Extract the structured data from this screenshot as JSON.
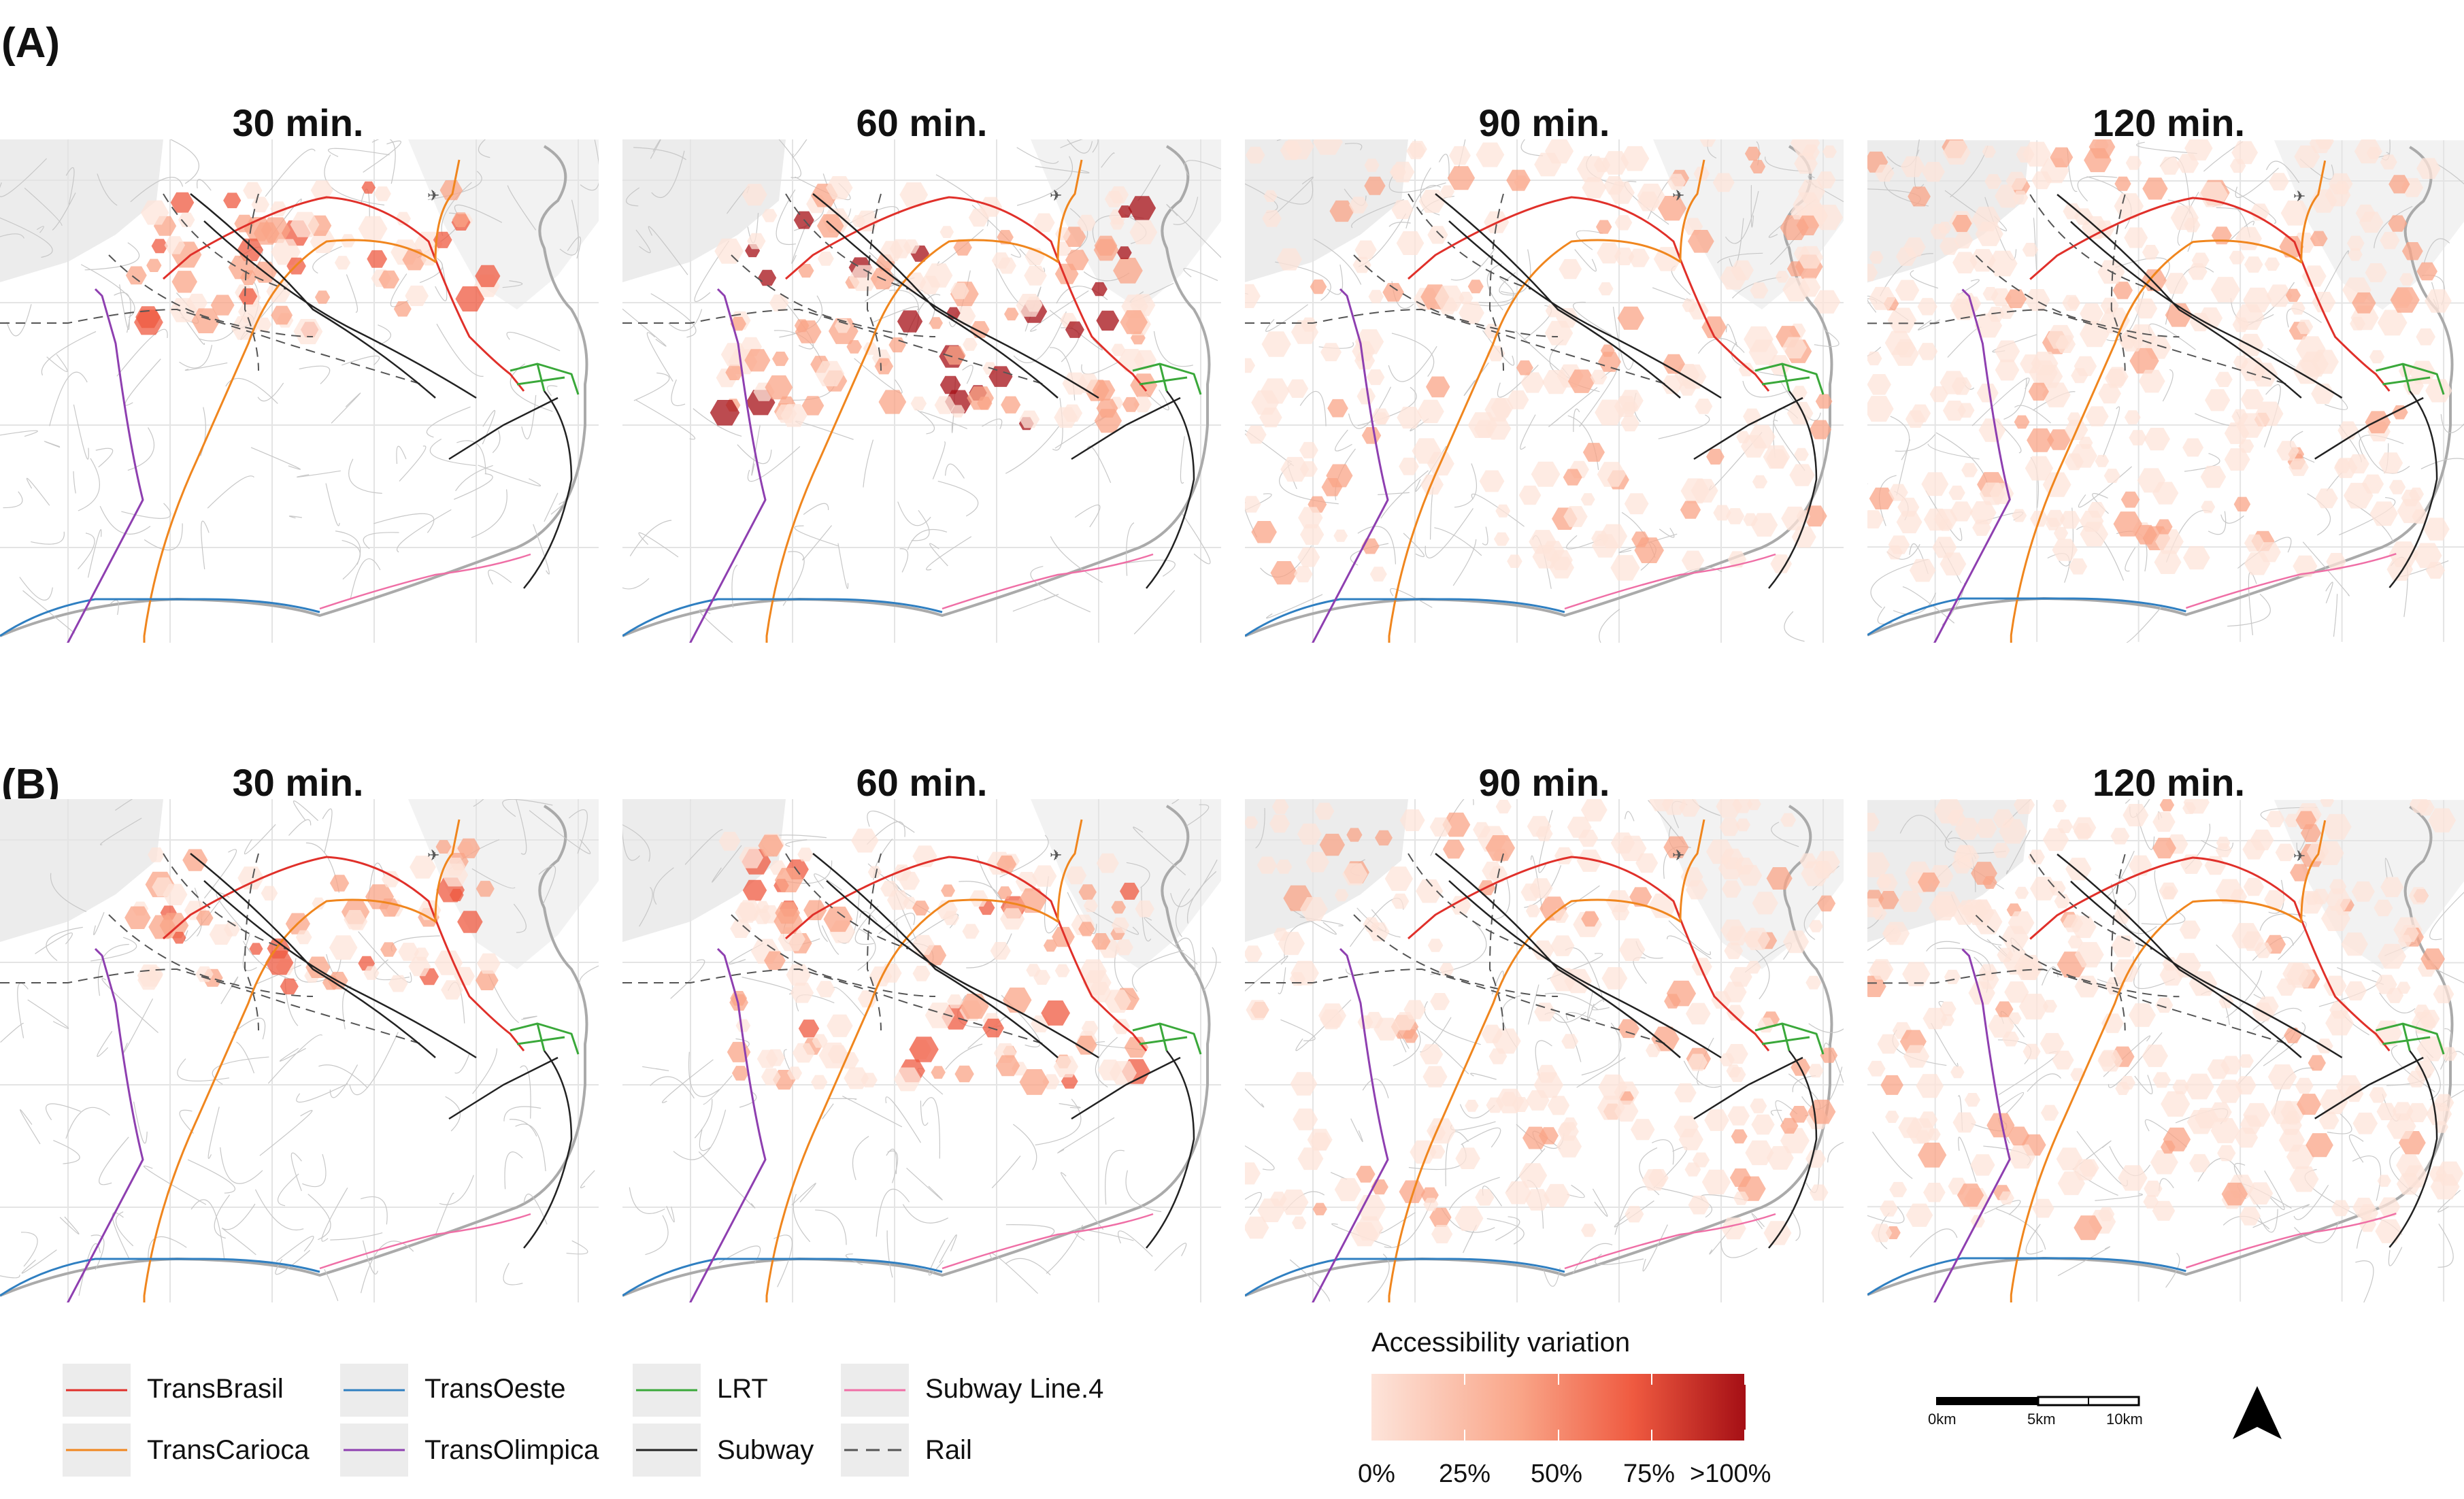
{
  "row_labels": [
    "(A)",
    "(B)"
  ],
  "panel_titles": [
    "30 min.",
    "60 min.",
    "90 min.",
    "120 min."
  ],
  "legend_lines": [
    {
      "label": "TransBrasil",
      "color": "#e0302a",
      "dashed": false
    },
    {
      "label": "TransCarioca",
      "color": "#f0861e",
      "dashed": false
    },
    {
      "label": "TransOeste",
      "color": "#2f7fc1",
      "dashed": false
    },
    {
      "label": "TransOlimpica",
      "color": "#8e3fb0",
      "dashed": false
    },
    {
      "label": "LRT",
      "color": "#3aa83a",
      "dashed": false
    },
    {
      "label": "Subway",
      "color": "#222222",
      "dashed": false
    },
    {
      "label": "Subway Line.4",
      "color": "#ef6fa6",
      "dashed": false
    },
    {
      "label": "Rail",
      "color": "#555555",
      "dashed": true
    }
  ],
  "colorbar": {
    "title": "Accessibility variation",
    "ticks": [
      "0%",
      "25%",
      "50%",
      "75%",
      ">100%"
    ],
    "colors": [
      "#fde4da",
      "#f9a487",
      "#ef5a40",
      "#a50f15"
    ]
  },
  "scalebar": {
    "labels": [
      "0km",
      "5km",
      "10km"
    ]
  },
  "north_arrow": "north-arrow-icon"
}
